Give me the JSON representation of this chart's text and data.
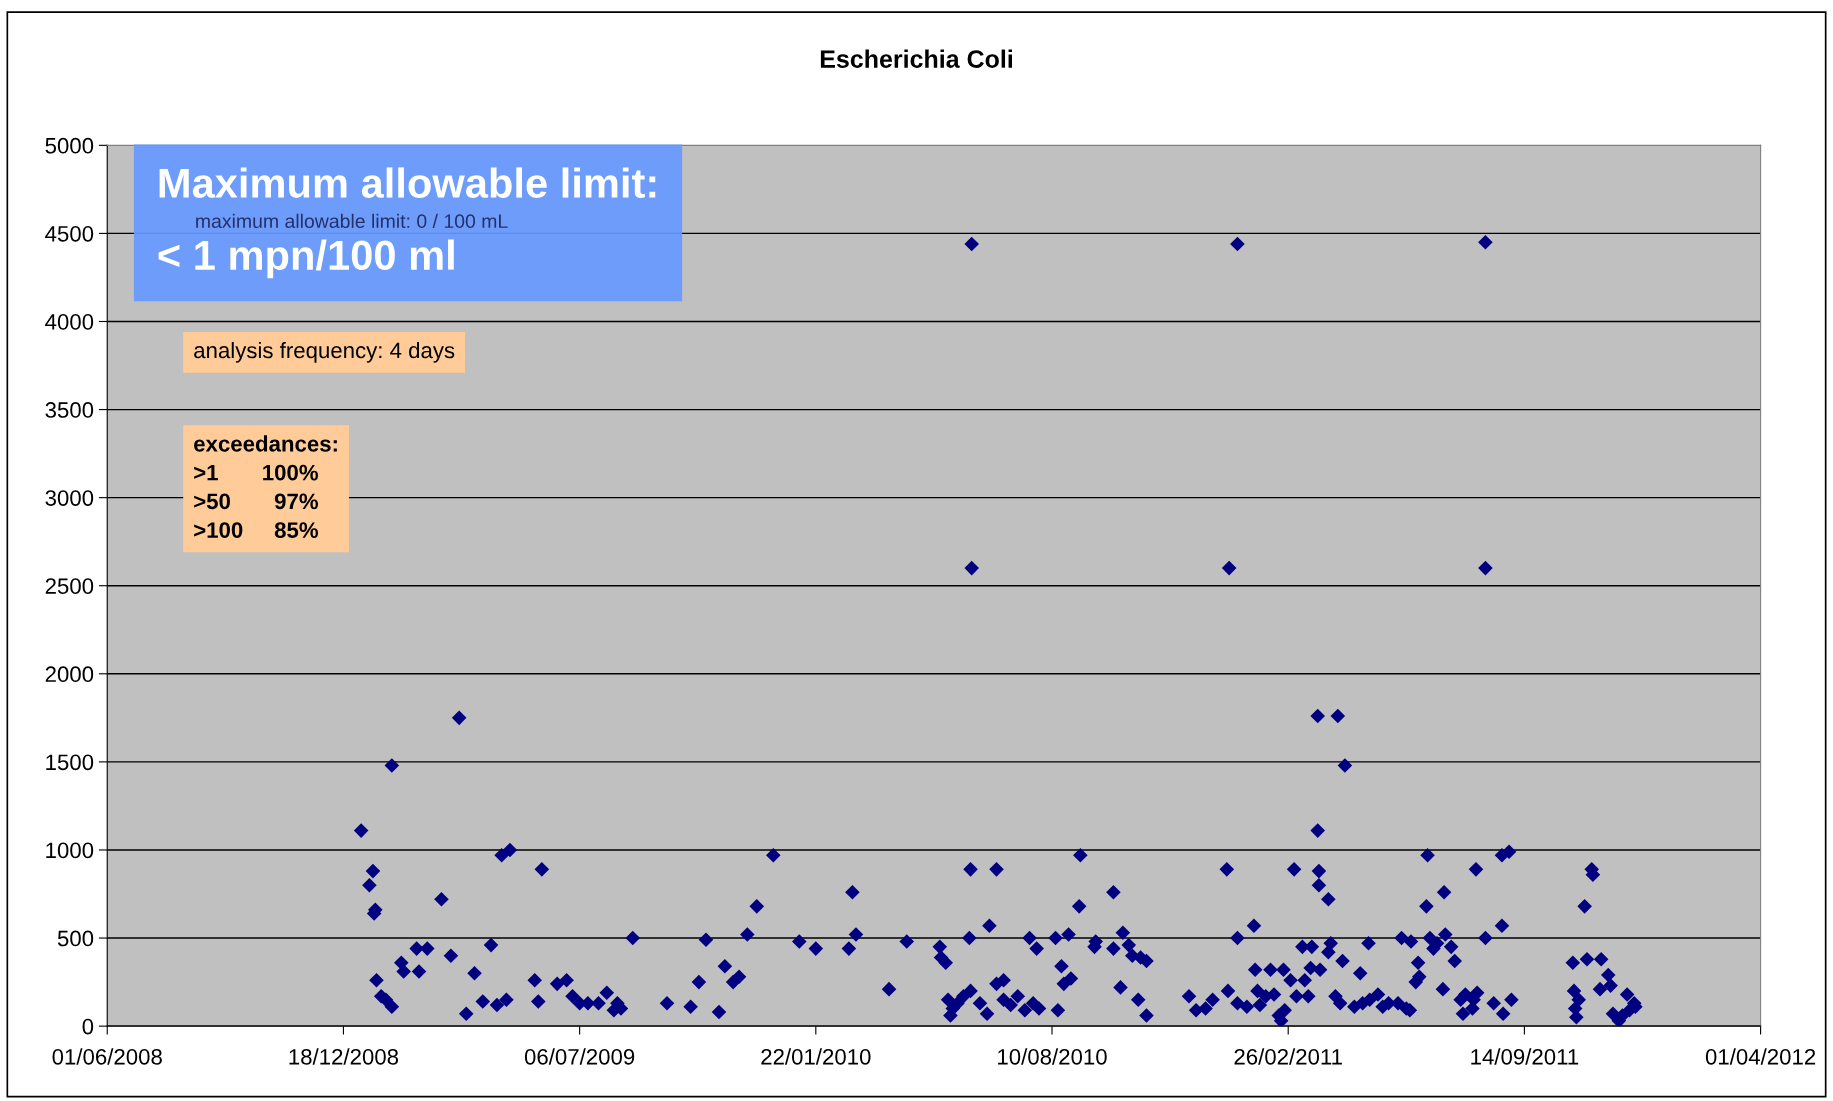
{
  "chart_data": {
    "type": "scatter",
    "title": "Escherichia Coli",
    "x": [
      "2009-01-02",
      "2009-01-09",
      "2009-01-12",
      "2009-01-13",
      "2009-01-14",
      "2009-01-15",
      "2009-01-19",
      "2009-01-23",
      "2009-01-28",
      "2009-01-28",
      "2009-02-05",
      "2009-02-07",
      "2009-02-18",
      "2009-02-20",
      "2009-02-27",
      "2009-03-11",
      "2009-03-19",
      "2009-03-26",
      "2009-04-01",
      "2009-04-08",
      "2009-04-15",
      "2009-04-22",
      "2009-04-27",
      "2009-05-01",
      "2009-05-08",
      "2009-05-05",
      "2009-05-29",
      "2009-06-04",
      "2009-06-01",
      "2009-06-17",
      "2009-06-25",
      "2009-06-30",
      "2009-07-06",
      "2009-07-13",
      "2009-07-22",
      "2009-07-29",
      "2009-08-04",
      "2009-08-07",
      "2009-08-10",
      "2009-08-20",
      "2009-09-18",
      "2009-10-08",
      "2009-10-15",
      "2009-10-21",
      "2009-11-01",
      "2009-11-06",
      "2009-11-13",
      "2009-11-18",
      "2009-11-25",
      "2009-12-03",
      "2009-12-17",
      "2010-01-08",
      "2010-01-22",
      "2010-02-19",
      "2010-02-22",
      "2010-02-25",
      "2010-03-25",
      "2010-04-09",
      "2010-05-07",
      "2010-05-08",
      "2010-05-12",
      "2010-05-14",
      "2010-05-16",
      "2010-05-18",
      "2010-05-22",
      "2010-05-27",
      "2010-06-01",
      "2010-06-02",
      "2010-06-03",
      "2010-06-03",
      "2010-06-02",
      "2010-06-10",
      "2010-06-16",
      "2010-06-18",
      "2010-06-24",
      "2010-06-24",
      "2010-06-30",
      "2010-06-30",
      "2010-07-06",
      "2010-07-12",
      "2010-07-18",
      "2010-07-22",
      "2010-07-25",
      "2010-07-28",
      "2010-07-30",
      "2010-08-13",
      "2010-08-15",
      "2010-08-18",
      "2010-08-20",
      "2010-08-24",
      "2010-08-26",
      "2010-09-03",
      "2010-09-02",
      "2010-09-15",
      "2010-09-16",
      "2010-10-01",
      "2010-10-01",
      "2010-10-07",
      "2010-10-09",
      "2010-10-14",
      "2010-10-17",
      "2010-10-22",
      "2010-10-24",
      "2010-10-29",
      "2010-10-29",
      "2010-12-04",
      "2010-12-10",
      "2010-12-18",
      "2010-12-24",
      "2011-01-05",
      "2011-01-06",
      "2011-01-07",
      "2011-01-14",
      "2011-01-14",
      "2011-01-14",
      "2011-01-22",
      "2011-01-28",
      "2011-01-29",
      "2011-01-31",
      "2011-02-02",
      "2011-02-07",
      "2011-02-11",
      "2011-02-14",
      "2011-02-18",
      "2011-02-20",
      "2011-02-22",
      "2011-02-23",
      "2011-02-28",
      "2011-03-03",
      "2011-03-05",
      "2011-03-10",
      "2011-03-12",
      "2011-03-15",
      "2011-03-17",
      "2011-03-18",
      "2011-03-23",
      "2011-03-23",
      "2011-03-24",
      "2011-03-24",
      "2011-03-25",
      "2011-04-01",
      "2011-04-01",
      "2011-04-03",
      "2011-04-07",
      "2011-04-09",
      "2011-04-11",
      "2011-04-13",
      "2011-04-15",
      "2011-04-23",
      "2011-04-28",
      "2011-04-30",
      "2011-05-05",
      "2011-05-06",
      "2011-05-13",
      "2011-05-17",
      "2011-05-22",
      "2011-05-30",
      "2011-06-02",
      "2011-06-06",
      "2011-06-09",
      "2011-06-10",
      "2011-06-14",
      "2011-06-16",
      "2011-06-17",
      "2011-06-23",
      "2011-06-24",
      "2011-06-26",
      "2011-06-29",
      "2011-07-02",
      "2011-07-08",
      "2011-07-07",
      "2011-07-09",
      "2011-07-14",
      "2011-07-17",
      "2011-07-22",
      "2011-07-24",
      "2011-07-26",
      "2011-08-01",
      "2011-08-02",
      "2011-08-04",
      "2011-08-05",
      "2011-08-12",
      "2011-08-12",
      "2011-08-12",
      "2011-08-19",
      "2011-08-26",
      "2011-08-27",
      "2011-08-26",
      "2011-09-01",
      "2011-09-03",
      "2011-10-25",
      "2011-10-26",
      "2011-10-27",
      "2011-10-28",
      "2011-10-30",
      "2011-11-04",
      "2011-11-06",
      "2011-11-10",
      "2011-11-11",
      "2011-11-17",
      "2011-11-18",
      "2011-11-24",
      "2011-11-26",
      "2011-11-28",
      "2011-12-03",
      "2011-12-06",
      "2011-12-10",
      "2011-12-12",
      "2011-12-16",
      "2011-12-17"
    ],
    "series": [
      {
        "color": "#000080",
        "values": [
          1110,
          800,
          880,
          640,
          660,
          260,
          170,
          150,
          110,
          1480,
          360,
          310,
          440,
          310,
          440,
          720,
          400,
          1750,
          70,
          300,
          140,
          460,
          120,
          970,
          1000,
          150,
          260,
          890,
          140,
          240,
          260,
          170,
          130,
          130,
          130,
          190,
          90,
          130,
          100,
          500,
          130,
          110,
          250,
          490,
          80,
          340,
          250,
          280,
          520,
          680,
          970,
          480,
          440,
          440,
          760,
          520,
          210,
          480,
          450,
          390,
          360,
          150,
          60,
          100,
          130,
          170,
          500,
          890,
          4440,
          2600,
          200,
          130,
          70,
          570,
          890,
          240,
          260,
          150,
          120,
          170,
          90,
          500,
          130,
          440,
          100,
          500,
          90,
          340,
          240,
          520,
          270,
          970,
          680,
          450,
          480,
          440,
          760,
          220,
          530,
          460,
          400,
          150,
          390,
          370,
          60,
          170,
          90,
          100,
          150,
          890,
          200,
          2600,
          4440,
          500,
          130,
          110,
          570,
          320,
          200,
          120,
          170,
          320,
          180,
          60,
          30,
          320,
          90,
          260,
          890,
          170,
          450,
          260,
          170,
          330,
          450,
          1760,
          1110,
          880,
          800,
          320,
          720,
          420,
          470,
          170,
          1760,
          130,
          370,
          1480,
          110,
          300,
          130,
          470,
          150,
          180,
          110,
          130,
          130,
          500,
          100,
          90,
          480,
          250,
          360,
          280,
          680,
          970,
          500,
          440,
          470,
          760,
          210,
          520,
          450,
          370,
          150,
          70,
          180,
          100,
          150,
          890,
          190,
          4450,
          2600,
          500,
          130,
          570,
          70,
          970,
          990,
          150,
          360,
          200,
          100,
          50,
          150,
          680,
          380,
          890,
          860,
          210,
          380,
          290,
          230,
          70,
          30,
          60,
          180,
          90,
          130,
          110
        ]
      }
    ],
    "xlim": [
      "2008-06-01",
      "2012-04-01"
    ],
    "xticks": [
      {
        "value": "2008-06-01",
        "label": "01/06/2008"
      },
      {
        "value": "2008-12-18",
        "label": "18/12/2008"
      },
      {
        "value": "2009-07-06",
        "label": "06/07/2009"
      },
      {
        "value": "2010-01-22",
        "label": "22/01/2010"
      },
      {
        "value": "2010-08-10",
        "label": "10/08/2010"
      },
      {
        "value": "2011-02-26",
        "label": "26/02/2011"
      },
      {
        "value": "2011-09-14",
        "label": "14/09/2011"
      },
      {
        "value": "2012-04-01",
        "label": "01/04/2012"
      }
    ],
    "ylim": [
      0,
      5000
    ],
    "yticks": [
      0,
      500,
      1000,
      1500,
      2000,
      2500,
      3000,
      3500,
      4000,
      4500,
      5000
    ],
    "grid": "y",
    "marker": "diamond",
    "legend": false,
    "annotations": [
      "maximum allowable limit: 0 / 100 mL",
      "Maximum allowable limit:\n< 1 mpn/100 ml",
      "analysis frequency: 4 days",
      "exceedances:\n>1       100%\n>50       97%\n>100     85%"
    ]
  }
}
